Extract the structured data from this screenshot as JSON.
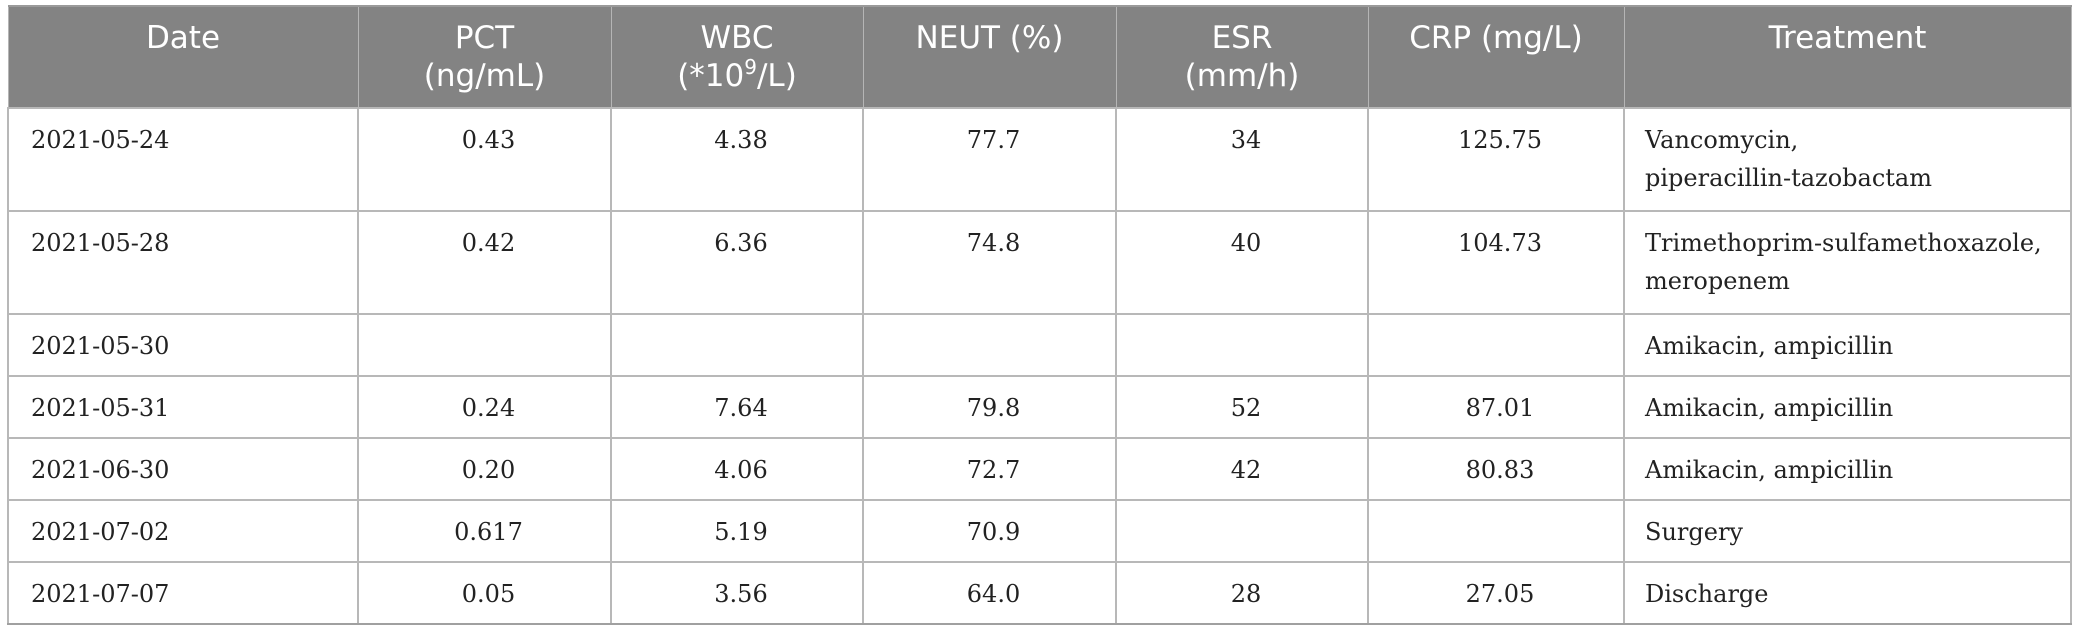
{
  "table": {
    "headers": [
      {
        "line1": "Date",
        "line2": ""
      },
      {
        "line1": "PCT",
        "line2": "(ng/mL)"
      },
      {
        "line1": "WBC",
        "line2_pre": "(*10",
        "line2_sup": "9",
        "line2_post": "/L)"
      },
      {
        "line1": "NEUT (%)",
        "line2": ""
      },
      {
        "line1": "ESR",
        "line2": "(mm/h)"
      },
      {
        "line1": "CRP (mg/L)",
        "line2": ""
      },
      {
        "line1": "Treatment",
        "line2": ""
      }
    ],
    "rows": [
      {
        "date": "2021-05-24",
        "pct": "0.43",
        "wbc": "4.38",
        "neut": "77.7",
        "esr": "34",
        "crp": "125.75",
        "treatment_1": "Vancomycin,",
        "treatment_2": "piperacillin-tazobactam"
      },
      {
        "date": "2021-05-28",
        "pct": "0.42",
        "wbc": "6.36",
        "neut": "74.8",
        "esr": "40",
        "crp": "104.73",
        "treatment_1": "Trimethoprim-sulfamethoxazole,",
        "treatment_2": "meropenem"
      },
      {
        "date": "2021-05-30",
        "pct": "",
        "wbc": "",
        "neut": "",
        "esr": "",
        "crp": "",
        "treatment_1": "Amikacin, ampicillin",
        "treatment_2": ""
      },
      {
        "date": "2021-05-31",
        "pct": "0.24",
        "wbc": "7.64",
        "neut": "79.8",
        "esr": "52",
        "crp": "87.01",
        "treatment_1": "Amikacin, ampicillin",
        "treatment_2": ""
      },
      {
        "date": "2021-06-30",
        "pct": "0.20",
        "wbc": "4.06",
        "neut": "72.7",
        "esr": "42",
        "crp": "80.83",
        "treatment_1": "Amikacin, ampicillin",
        "treatment_2": ""
      },
      {
        "date": "2021-07-02",
        "pct": "0.617",
        "wbc": "5.19",
        "neut": "70.9",
        "esr": "",
        "crp": "",
        "treatment_1": "Surgery",
        "treatment_2": ""
      },
      {
        "date": "2021-07-07",
        "pct": "0.05",
        "wbc": "3.56",
        "neut": "64.0",
        "esr": "28",
        "crp": "27.05",
        "treatment_1": "Discharge",
        "treatment_2": ""
      }
    ]
  },
  "colors": {
    "header_bg": "#838383",
    "header_text": "#ffffff",
    "border": "#b8b8b8",
    "cell_text": "#222222"
  }
}
